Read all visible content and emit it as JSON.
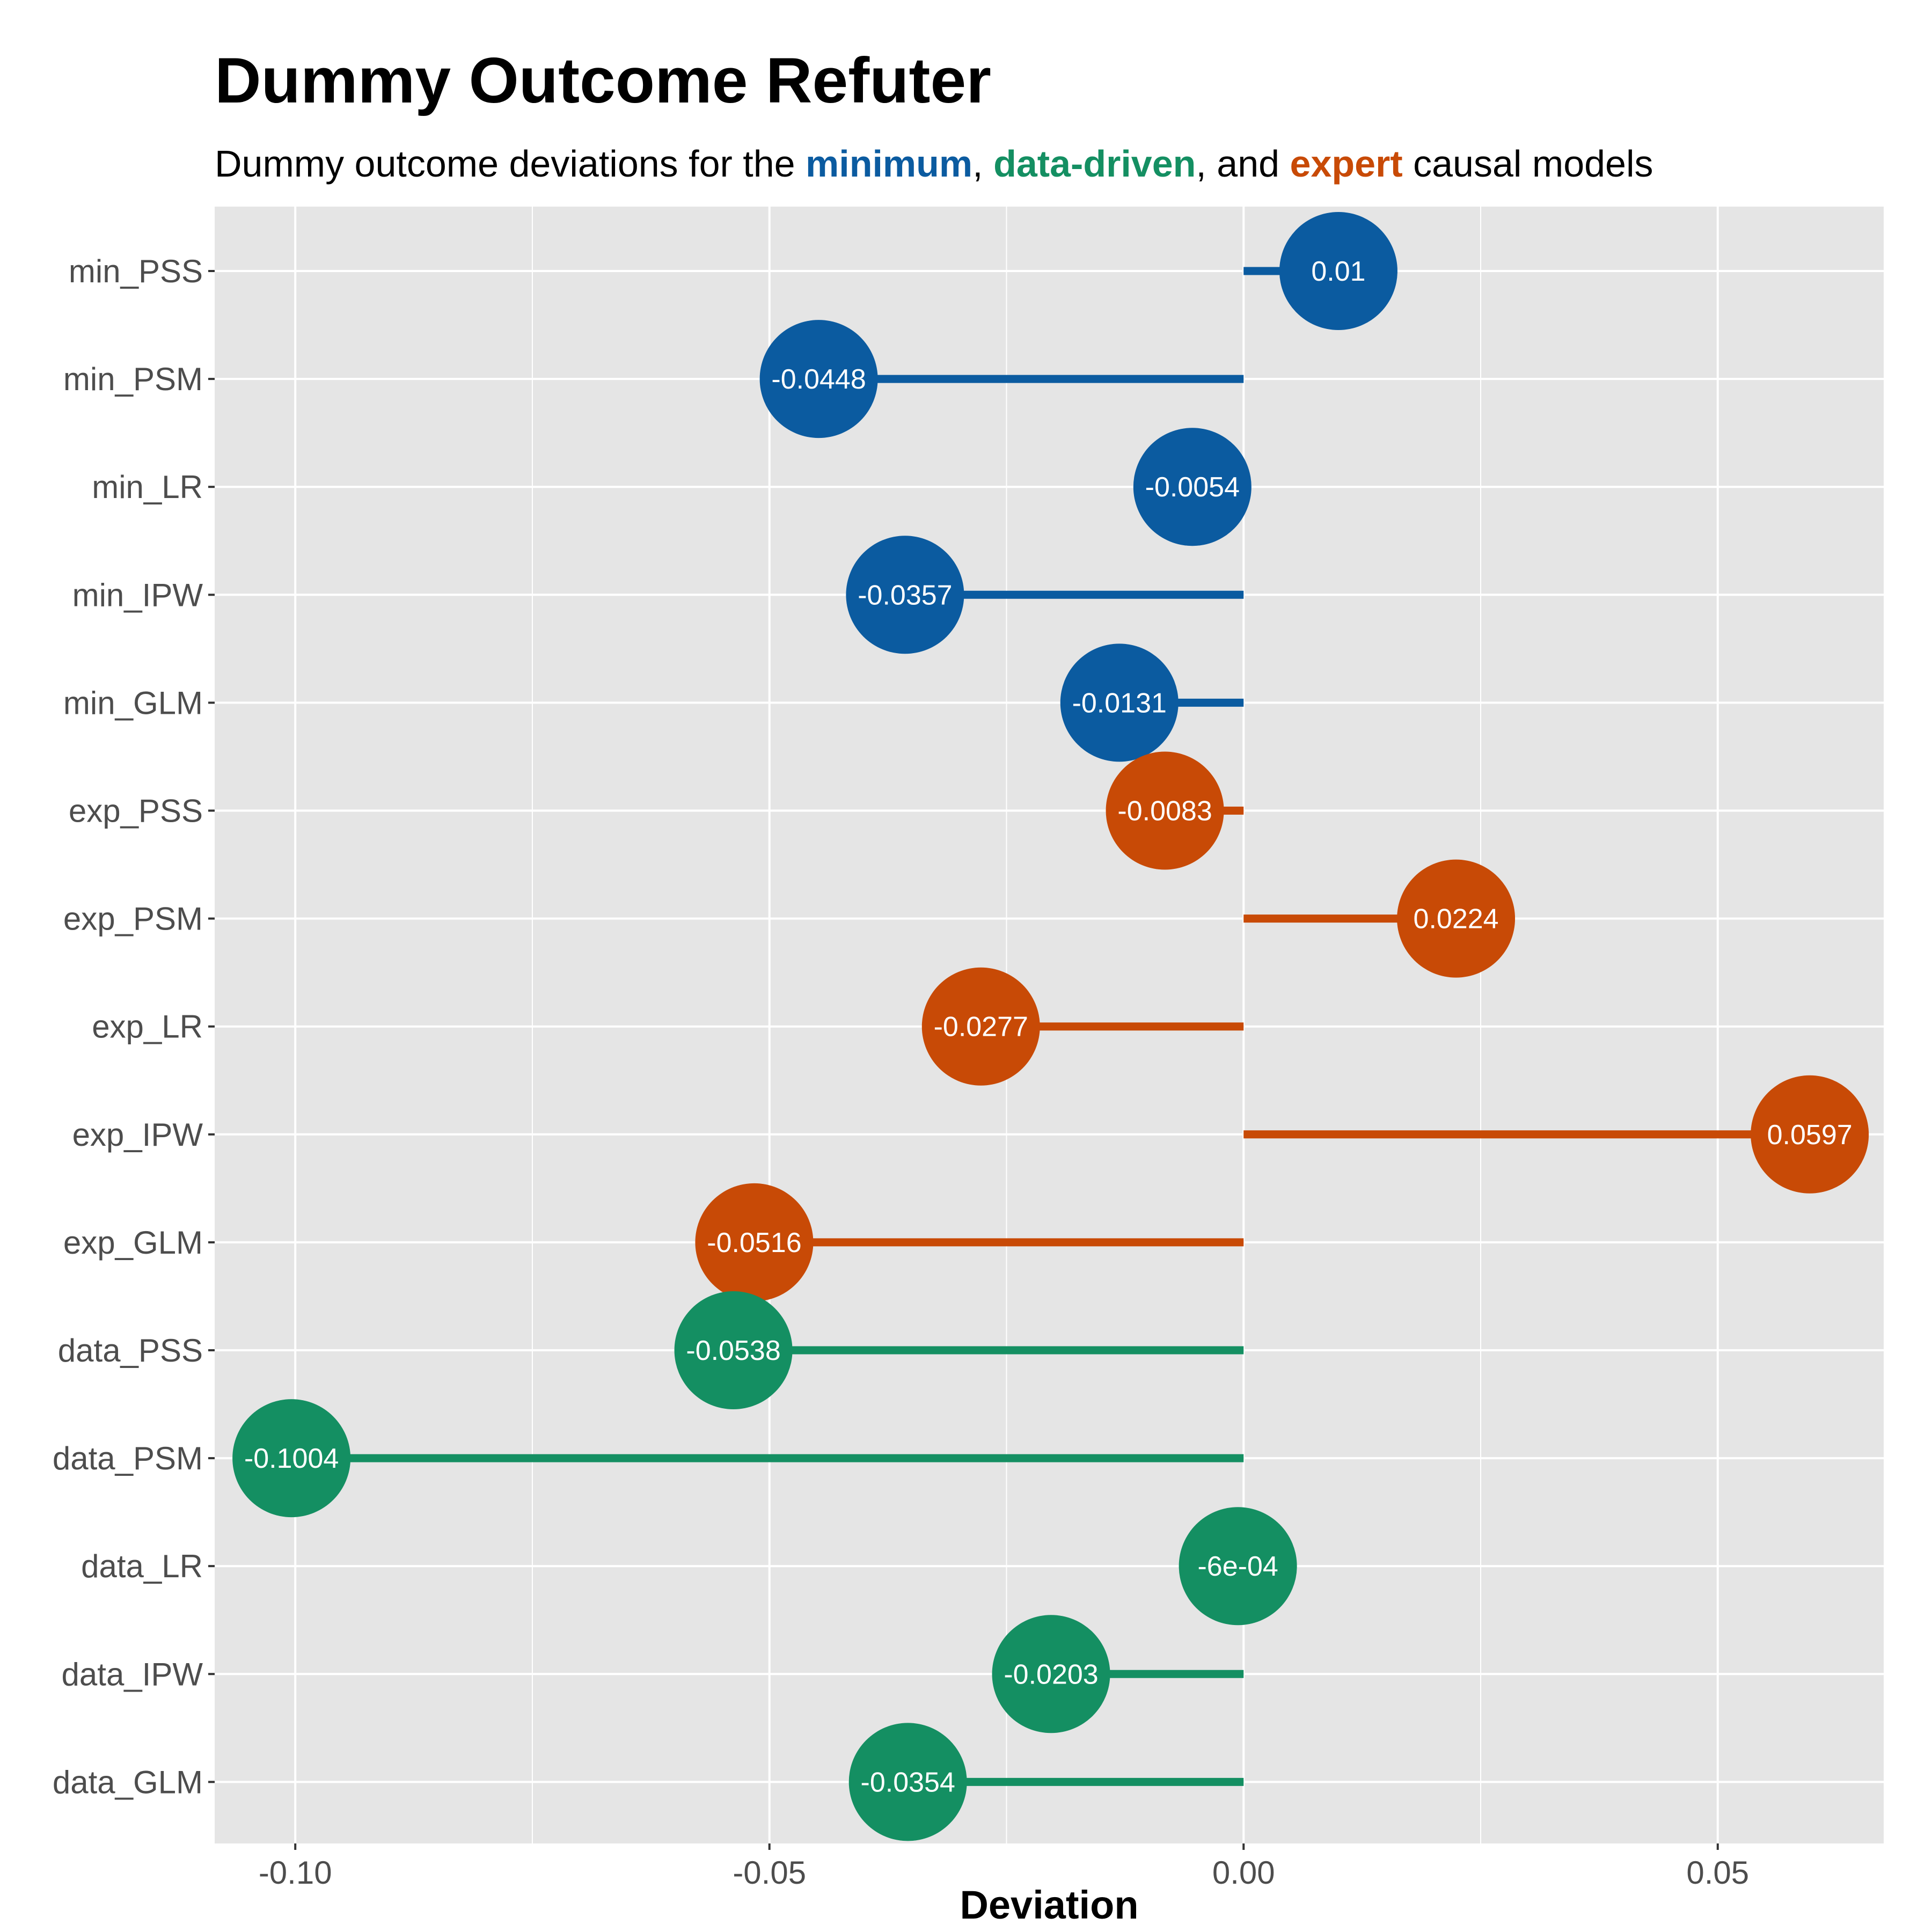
{
  "title": "Dummy Outcome Refuter",
  "subtitle": {
    "prefix": "Dummy outcome deviations for the ",
    "minimum": "minimum",
    "sep1": ", ",
    "data_driven": "data-driven",
    "sep2": ", and ",
    "expert": "expert",
    "suffix": " causal models"
  },
  "colors": {
    "minimum": "#0B5BA0",
    "data_driven": "#148F62",
    "expert": "#C84A06",
    "panel": "#E5E5E5",
    "grid": "#FFFFFF"
  },
  "chart_data": {
    "type": "lollipop",
    "xlabel": "Deviation",
    "ylabel": "",
    "xlim": [
      -0.1085,
      0.0675
    ],
    "xticks": [
      -0.1,
      -0.05,
      0.0,
      0.05
    ],
    "xtick_labels": [
      "-0.10",
      "-0.05",
      "0.00",
      "0.05"
    ],
    "baseline": 0,
    "grid": true,
    "rows": [
      {
        "label": "min_PSS",
        "value": 0.01,
        "display": "0.01",
        "group": "minimum"
      },
      {
        "label": "min_PSM",
        "value": -0.0448,
        "display": "-0.0448",
        "group": "minimum"
      },
      {
        "label": "min_LR",
        "value": -0.0054,
        "display": "-0.0054",
        "group": "minimum"
      },
      {
        "label": "min_IPW",
        "value": -0.0357,
        "display": "-0.0357",
        "group": "minimum"
      },
      {
        "label": "min_GLM",
        "value": -0.0131,
        "display": "-0.0131",
        "group": "minimum"
      },
      {
        "label": "exp_PSS",
        "value": -0.0083,
        "display": "-0.0083",
        "group": "expert"
      },
      {
        "label": "exp_PSM",
        "value": 0.0224,
        "display": "0.0224",
        "group": "expert"
      },
      {
        "label": "exp_LR",
        "value": -0.0277,
        "display": "-0.0277",
        "group": "expert"
      },
      {
        "label": "exp_IPW",
        "value": 0.0597,
        "display": "0.0597",
        "group": "expert"
      },
      {
        "label": "exp_GLM",
        "value": -0.0516,
        "display": "-0.0516",
        "group": "expert"
      },
      {
        "label": "data_PSS",
        "value": -0.0538,
        "display": "-0.0538",
        "group": "data_driven"
      },
      {
        "label": "data_PSM",
        "value": -0.1004,
        "display": "-0.1004",
        "group": "data_driven"
      },
      {
        "label": "data_LR",
        "value": -0.0006,
        "display": "-6e-04",
        "group": "data_driven"
      },
      {
        "label": "data_IPW",
        "value": -0.0203,
        "display": "-0.0203",
        "group": "data_driven"
      },
      {
        "label": "data_GLM",
        "value": -0.0354,
        "display": "-0.0354",
        "group": "data_driven"
      }
    ]
  }
}
